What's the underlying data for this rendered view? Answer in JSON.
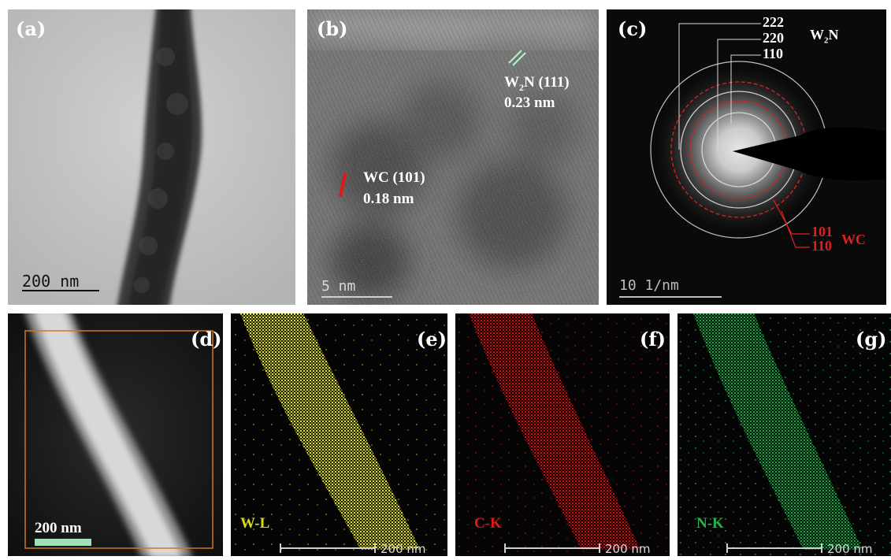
{
  "panels": {
    "a": {
      "label": "(a)",
      "scale_bar": "200 nm"
    },
    "b": {
      "label": "(b)",
      "scale_bar": "5 nm",
      "w2n_name": "W",
      "w2n_sub": "2",
      "w2n_rest": "N (111)",
      "w2n_spacing": "0.23 nm",
      "wc_name": "WC (101)",
      "wc_spacing": "0.18 nm"
    },
    "c": {
      "label": "(c)",
      "scale_bar": "10 1/nm",
      "w2n_rings": [
        "222",
        "220",
        "110"
      ],
      "phase_w": "W",
      "phase_sub": "2",
      "phase_n": "N",
      "wc_rings": [
        "101",
        "110"
      ],
      "wc_label": "WC"
    },
    "d": {
      "label": "(d)",
      "scale_bar": "200 nm"
    },
    "e": {
      "label": "(e)",
      "element": "W-L",
      "scale_bar": "200 nm",
      "color": "#d8d820"
    },
    "f": {
      "label": "(f)",
      "element": "C-K",
      "scale_bar": "200 nm",
      "color": "#e01818"
    },
    "g": {
      "label": "(g)",
      "element": "N-K",
      "scale_bar": "200 nm",
      "color": "#22b848"
    }
  }
}
